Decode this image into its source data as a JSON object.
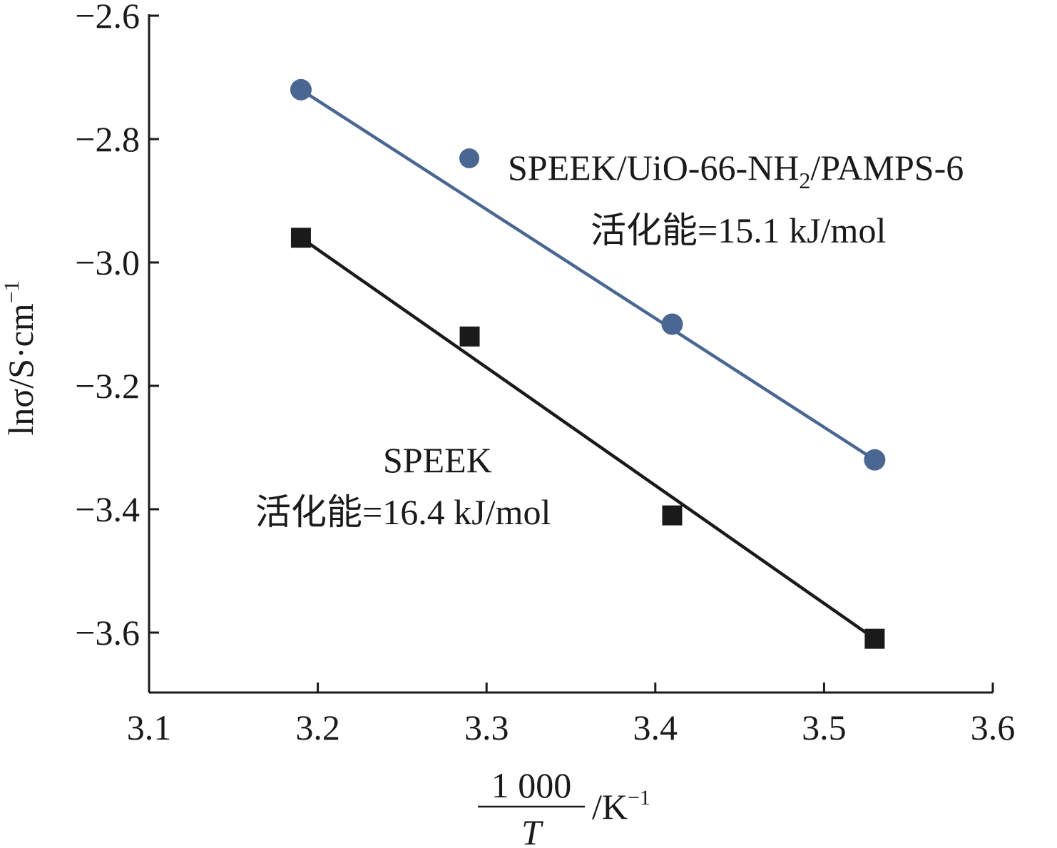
{
  "chart_data": {
    "type": "scatter",
    "title": "",
    "xlabel": {
      "numerator": "1 000",
      "denominator": "T",
      "unit": "/K",
      "unit_sup": "−1"
    },
    "ylabel": {
      "main": "lnσ/S·cm",
      "sup": "−1"
    },
    "xlim": [
      3.1,
      3.6
    ],
    "ylim": [
      -3.7,
      -2.6
    ],
    "xticks": [
      3.1,
      3.2,
      3.3,
      3.4,
      3.5,
      3.6
    ],
    "xtick_labels": [
      "3.1",
      "3.2",
      "3.3",
      "3.4",
      "3.5",
      "3.6"
    ],
    "yticks": [
      -2.6,
      -2.8,
      -3.0,
      -3.2,
      -3.4,
      -3.6
    ],
    "ytick_labels": [
      "−2.6",
      "−2.8",
      "−3.0",
      "−3.2",
      "−3.4",
      "−3.6"
    ],
    "grid": false,
    "series": [
      {
        "name_main": "SPEEK/UiO-66-NH",
        "name_sub": "2",
        "name_tail": "/PAMPS-6",
        "marker": "circle",
        "color": "#4a6794",
        "x": [
          3.19,
          3.41,
          3.53
        ],
        "y": [
          -2.72,
          -3.1,
          -3.32
        ],
        "fit": {
          "x": [
            3.19,
            3.53
          ],
          "y": [
            -2.72,
            -3.32
          ]
        },
        "annotation": "活化能=15.1 kJ/mol"
      },
      {
        "name": "SPEEK",
        "marker": "square",
        "color": "#1a1a1a",
        "x": [
          3.19,
          3.29,
          3.41,
          3.53
        ],
        "y": [
          -2.96,
          -3.12,
          -3.41,
          -3.61
        ],
        "fit": {
          "x": [
            3.19,
            3.53
          ],
          "y": [
            -2.96,
            -3.61
          ]
        },
        "annotation": "活化能=16.4 kJ/mol"
      }
    ]
  }
}
